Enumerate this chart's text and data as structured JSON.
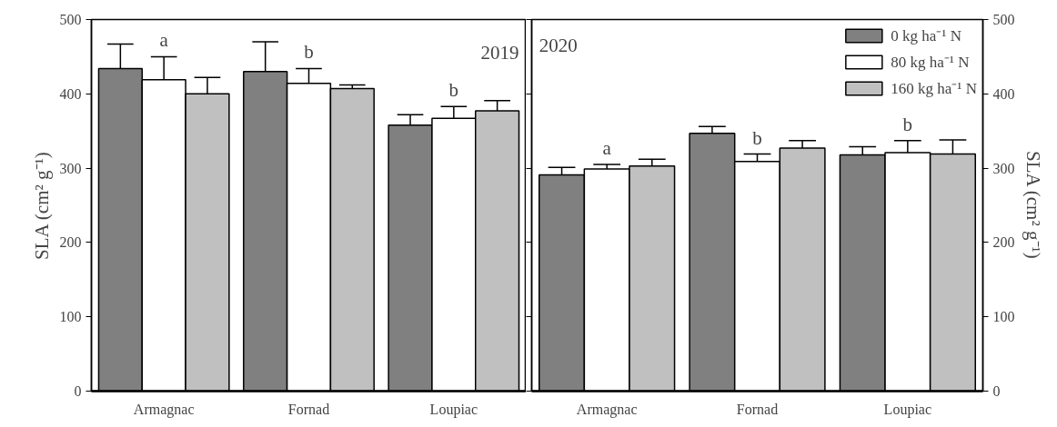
{
  "chart_data": [
    {
      "type": "bar",
      "title": "2019",
      "ylabel": "SLA (cm² g⁻¹)",
      "categories": [
        "Armagnac",
        "Fornad",
        "Loupiac"
      ],
      "ylim": [
        0,
        500
      ],
      "yticks": [
        0,
        100,
        200,
        300,
        400,
        500
      ],
      "series": [
        {
          "color": "#808080",
          "values": [
            434,
            430,
            358
          ],
          "errors": [
            [
              434,
              467
            ],
            [
              430,
              470
            ],
            [
              358,
              372
            ]
          ]
        },
        {
          "color": "#ffffff",
          "values": [
            419,
            414,
            367
          ],
          "errors": [
            [
              419,
              450
            ],
            [
              414,
              434
            ],
            [
              367,
              383
            ]
          ]
        },
        {
          "color": "#c0c0c0",
          "values": [
            400,
            407,
            377
          ],
          "errors": [
            [
              400,
              422
            ],
            [
              407,
              412
            ],
            [
              377,
              391
            ]
          ]
        }
      ],
      "annotations": [
        "a",
        "b",
        "b"
      ],
      "legend": false,
      "grid": false
    },
    {
      "type": "bar",
      "title": "2020",
      "y2label": "SLA (cm² g⁻¹)",
      "categories": [
        "Armagnac",
        "Fornad",
        "Loupiac"
      ],
      "y2lim": [
        0,
        500
      ],
      "y2ticks": [
        0,
        100,
        200,
        300,
        400,
        500
      ],
      "series": [
        {
          "name": "0 kg ha⁻¹ N",
          "color": "#808080",
          "axis": "y2",
          "values": [
            291,
            347,
            318
          ],
          "errors": [
            [
              291,
              301
            ],
            [
              347,
              356
            ],
            [
              318,
              329
            ]
          ]
        },
        {
          "name": "80 kg ha⁻¹ N",
          "color": "#ffffff",
          "axis": "y2",
          "values": [
            299,
            309,
            321
          ],
          "errors": [
            [
              299,
              305
            ],
            [
              309,
              319
            ],
            [
              321,
              337
            ]
          ]
        },
        {
          "name": "160 kg ha⁻¹ N",
          "color": "#c0c0c0",
          "axis": "y2",
          "values": [
            303,
            327,
            319
          ],
          "errors": [
            [
              303,
              312
            ],
            [
              327,
              337
            ],
            [
              319,
              338
            ]
          ]
        }
      ],
      "annotations": [
        "a",
        "b",
        "b"
      ],
      "legend": "top right",
      "grid": false
    }
  ]
}
